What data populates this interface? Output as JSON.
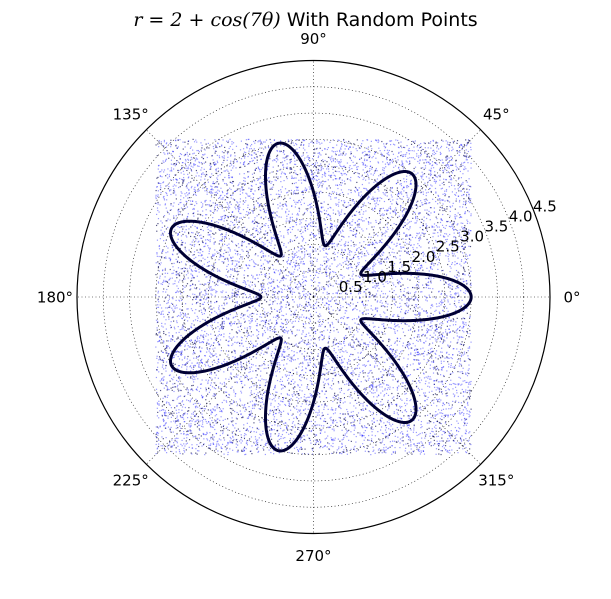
{
  "chart_data": {
    "type": "scatter",
    "projection": "polar",
    "title": {
      "math": "r = 2 + cos(7θ)",
      "text": " With Random Points"
    },
    "radial_ticks": [
      0.5,
      1.0,
      1.5,
      2.0,
      2.5,
      3.0,
      3.5,
      4.0,
      4.5
    ],
    "radial_tick_labels": [
      "0.5",
      "1.0",
      "1.5",
      "2.0",
      "2.5",
      "3.0",
      "3.5",
      "4.0",
      "4.5"
    ],
    "rlim": [
      0,
      4.5
    ],
    "angular_ticks_deg": [
      0,
      45,
      90,
      135,
      180,
      225,
      270,
      315
    ],
    "angular_tick_labels": [
      "0°",
      "45°",
      "90°",
      "135°",
      "180°",
      "225°",
      "270°",
      "315°"
    ],
    "grid": true,
    "series": [
      {
        "kind": "curve",
        "equation": "r = 2 + cos(7θ)",
        "theta_range_deg": [
          0,
          360
        ],
        "color": "#000033"
      },
      {
        "kind": "points",
        "distribution": "uniform random",
        "x_range": [
          -3,
          3
        ],
        "y_range": [
          -3,
          3
        ],
        "count": 10000,
        "color": "#0000ff"
      }
    ]
  }
}
